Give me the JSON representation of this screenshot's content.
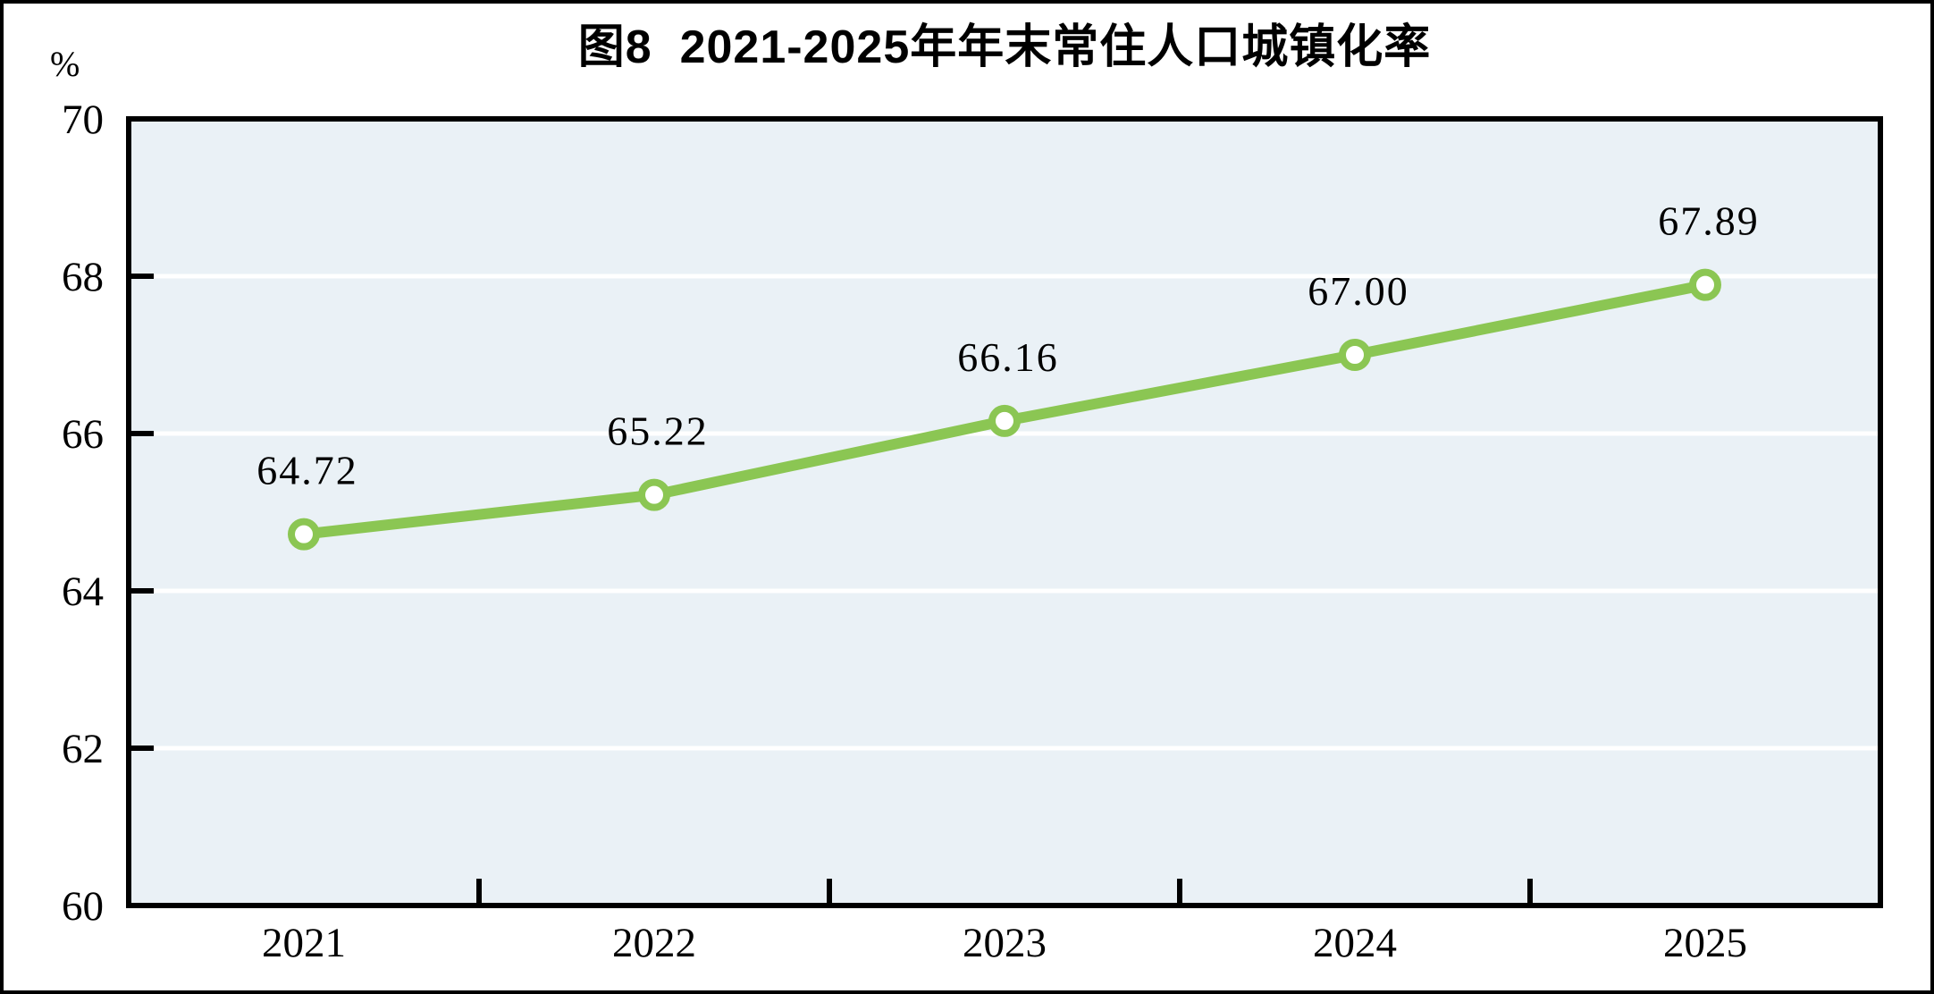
{
  "chart_data": {
    "type": "line",
    "title": "图8  2021-2025年年末常住人口城镇化率",
    "unit_label": "%",
    "categories": [
      "2021",
      "2022",
      "2023",
      "2024",
      "2025"
    ],
    "series": [
      {
        "name": "年末常住人口城镇化率",
        "values": [
          64.72,
          65.22,
          66.16,
          67.0,
          67.89
        ]
      }
    ],
    "data_labels": [
      "64.72",
      "65.22",
      "66.16",
      "67.00",
      "67.89"
    ],
    "ylim": [
      60,
      70
    ],
    "yticks": [
      60,
      62,
      64,
      66,
      68,
      70
    ],
    "ytick_interval": 2,
    "legend": "none",
    "grid": "horizontal white gridlines on shaded plot area",
    "colors": {
      "line": "#8BC653",
      "marker_fill": "#ffffff",
      "plot_background": "#EAF1F6",
      "plot_border": "#000000",
      "gridline": "#ffffff",
      "text": "#000000"
    }
  }
}
